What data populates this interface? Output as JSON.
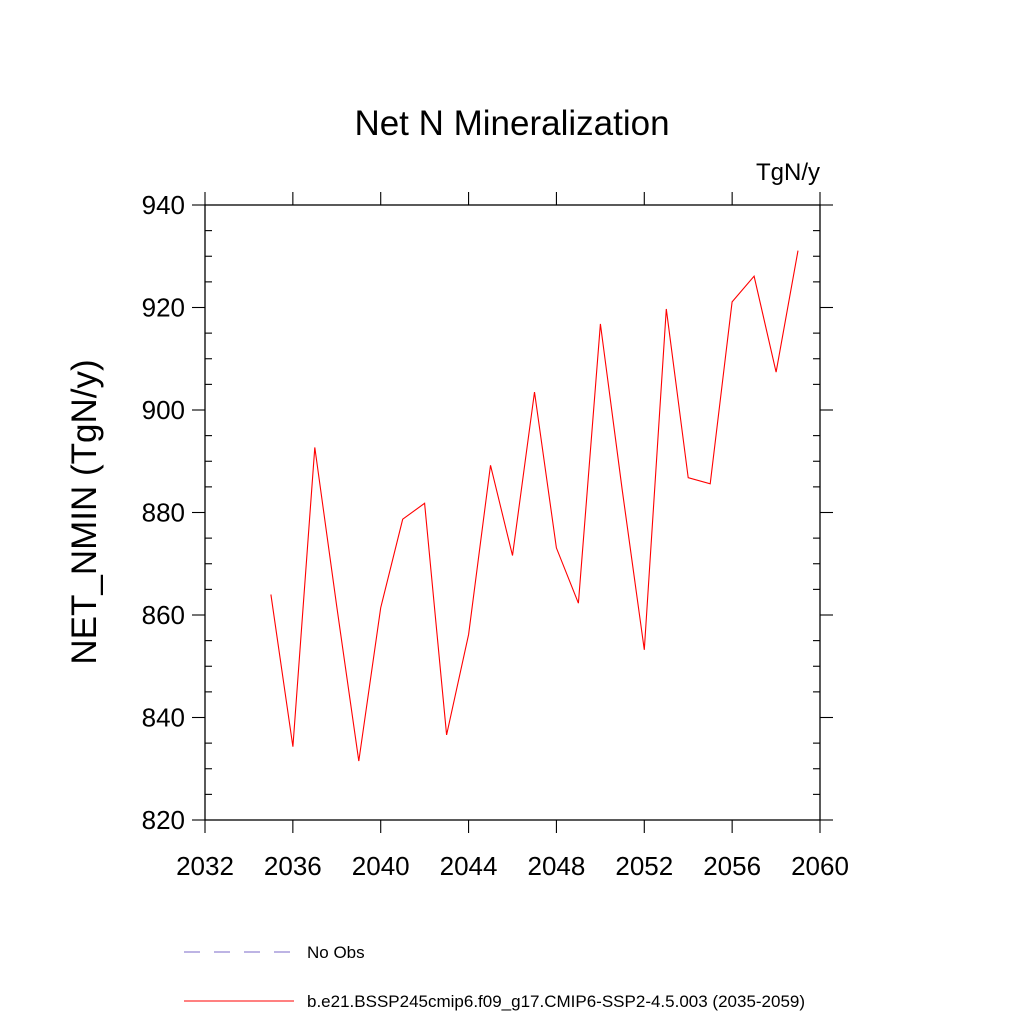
{
  "chart_data": {
    "type": "line",
    "title": "Net N Mineralization",
    "units": "TgN/y",
    "xlabel": "",
    "ylabel": "NET_NMIN  (TgN/y)",
    "xlim": [
      2032,
      2060
    ],
    "ylim": [
      820,
      940
    ],
    "xticks": [
      2032,
      2036,
      2040,
      2044,
      2048,
      2052,
      2056,
      2060
    ],
    "yticks": [
      820,
      840,
      860,
      880,
      900,
      920,
      940
    ],
    "series": [
      {
        "name": "b.e21.BSSP245cmip6.f09_g17.CMIP6-SSP2-4.5.003 (2035-2059)",
        "color": "#ff0000",
        "dash": "solid",
        "x": [
          2035,
          2036,
          2037,
          2038,
          2039,
          2040,
          2041,
          2042,
          2043,
          2044,
          2045,
          2046,
          2047,
          2048,
          2049,
          2050,
          2051,
          2052,
          2053,
          2054,
          2055,
          2056,
          2057,
          2058,
          2059
        ],
        "y": [
          864.0,
          834.3,
          892.7,
          861.6,
          831.5,
          861.4,
          878.7,
          881.8,
          836.6,
          856.2,
          889.2,
          871.6,
          903.5,
          873.1,
          862.3,
          916.8,
          884.3,
          853.2,
          919.7,
          886.8,
          885.6,
          921.1,
          926.1,
          907.4,
          931.1
        ]
      }
    ],
    "legend": {
      "placement": "bottom",
      "entries": [
        {
          "label": "No Obs",
          "color": "#7b68c8",
          "dash": "dashed"
        },
        {
          "label": "b.e21.BSSP245cmip6.f09_g17.CMIP6-SSP2-4.5.003 (2035-2059)",
          "color": "#ff0000",
          "dash": "solid"
        }
      ]
    }
  }
}
